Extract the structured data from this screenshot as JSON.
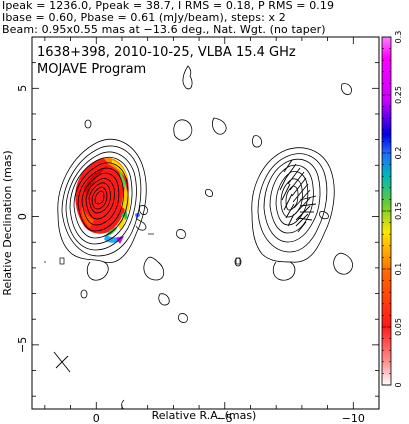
{
  "header": {
    "line1": "Ipeak = 1236.0, Ppeak = 38.7, I RMS = 0.18, P RMS = 0.19",
    "line2": "Ibase = 0.60, Pbase = 0.61 (mJy/beam), steps: x 2",
    "line3": "Beam: 0.95x0.55 mas at −13.6 deg., Nat. Wgt. (no taper)"
  },
  "chart_data": {
    "type": "contour",
    "title": "1638+398, 2010-10-25, VLBA 15.4 GHz",
    "subtitle": "MOJAVE Program",
    "xlabel": "Relative R.A. (mas)",
    "ylabel": "Relative Declination (mas)",
    "xlim": [
      2.5,
      -11
    ],
    "ylim": [
      -7.5,
      7
    ],
    "x_ticks": [
      0,
      -5,
      -10
    ],
    "x_tick_labels": [
      "0",
      "−5",
      "−10"
    ],
    "y_ticks": [
      5,
      0,
      -5
    ],
    "y_tick_labels": [
      "5",
      "0",
      "−5"
    ],
    "colorbar": {
      "min": 0,
      "max": 0.3,
      "ticks": [
        0,
        0.05,
        0.1,
        0.15,
        0.2,
        0.25,
        0.3
      ],
      "tick_labels": [
        "0",
        "0.05",
        "0.1",
        "0.15",
        "0.2",
        "0.25",
        "0.3"
      ]
    },
    "left_panel": {
      "description": "Total intensity contours with fractional polarization color",
      "core_center": [
        0,
        0
      ]
    },
    "right_panel": {
      "description": "Total intensity contours with polarization EVPA ticks",
      "core_center": [
        -7,
        0
      ]
    }
  }
}
